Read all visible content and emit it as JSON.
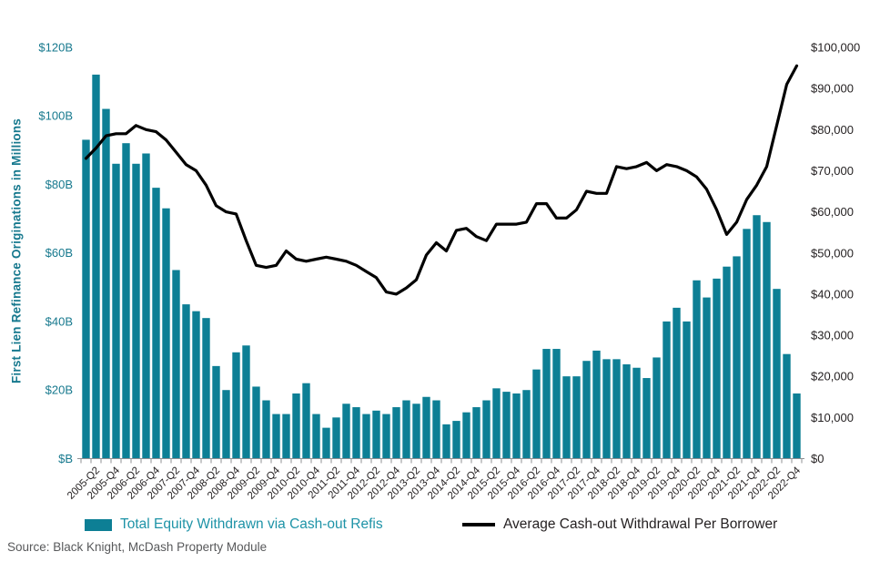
{
  "source_note": "Source: Black Knight, McDash Property Module",
  "left_axis": {
    "title": "First Lien Refinance Originations in Millions",
    "tick_labels": [
      "$B",
      "$20B",
      "$40B",
      "$60B",
      "$80B",
      "$100B",
      "$120B"
    ],
    "tick_values_billions": [
      0,
      20,
      40,
      60,
      80,
      100,
      120
    ],
    "max_billions": 120,
    "color": "#17798e"
  },
  "right_axis": {
    "tick_labels": [
      "$0",
      "$10,000",
      "$20,000",
      "$30,000",
      "$40,000",
      "$50,000",
      "$60,000",
      "$70,000",
      "$80,000",
      "$90,000",
      "$100,000"
    ],
    "tick_values_dollars": [
      0,
      10000,
      20000,
      30000,
      40000,
      50000,
      60000,
      70000,
      80000,
      90000,
      100000
    ],
    "max_dollars": 100000,
    "color": "#231f20"
  },
  "legend": [
    {
      "label": "Total Equity Withdrawn via Cash-out Refis",
      "type": "bar",
      "color": "#0d7f95"
    },
    {
      "label": "Average Cash-out Withdrawal Per Borrower",
      "type": "line",
      "color": "#000000"
    }
  ],
  "chart_data": {
    "type": "combo-bar-line",
    "categories": [
      "2005-Q1",
      "2005-Q2",
      "2005-Q3",
      "2005-Q4",
      "2006-Q1",
      "2006-Q2",
      "2006-Q3",
      "2006-Q4",
      "2007-Q1",
      "2007-Q2",
      "2007-Q3",
      "2007-Q4",
      "2008-Q1",
      "2008-Q2",
      "2008-Q3",
      "2008-Q4",
      "2009-Q1",
      "2009-Q2",
      "2009-Q3",
      "2009-Q4",
      "2010-Q1",
      "2010-Q2",
      "2010-Q3",
      "2010-Q4",
      "2011-Q1",
      "2011-Q2",
      "2011-Q3",
      "2011-Q4",
      "2012-Q1",
      "2012-Q2",
      "2012-Q3",
      "2012-Q4",
      "2013-Q1",
      "2013-Q2",
      "2013-Q3",
      "2013-Q4",
      "2014-Q1",
      "2014-Q2",
      "2014-Q3",
      "2014-Q4",
      "2015-Q1",
      "2015-Q2",
      "2015-Q3",
      "2015-Q4",
      "2016-Q1",
      "2016-Q2",
      "2016-Q3",
      "2016-Q4",
      "2017-Q1",
      "2017-Q2",
      "2017-Q3",
      "2017-Q4",
      "2018-Q1",
      "2018-Q2",
      "2018-Q3",
      "2018-Q4",
      "2019-Q1",
      "2019-Q2",
      "2019-Q3",
      "2019-Q4",
      "2020-Q1",
      "2020-Q2",
      "2020-Q3",
      "2020-Q4",
      "2021-Q1",
      "2021-Q2",
      "2021-Q3",
      "2021-Q4",
      "2022-Q1",
      "2022-Q2",
      "2022-Q3",
      "2022-Q4"
    ],
    "x_label_every": 2,
    "x_label_offset": 1,
    "series": [
      {
        "name": "Total Equity Withdrawn via Cash-out Refis",
        "type": "bar",
        "axis": "left",
        "unit": "billions USD",
        "color": "#0d7f95",
        "values": [
          93,
          112,
          102,
          86,
          92,
          86,
          89,
          79,
          73,
          55,
          45,
          43,
          41,
          27,
          20,
          31,
          33,
          21,
          17,
          13,
          13,
          19,
          22,
          13,
          9,
          12,
          16,
          15,
          13,
          14,
          13,
          15,
          17,
          16,
          18,
          17,
          10,
          11,
          13.5,
          15,
          17,
          20.5,
          19.5,
          19,
          20,
          26,
          32,
          32,
          24,
          24,
          28.5,
          31.5,
          29,
          29,
          27.5,
          26.5,
          23.5,
          29.5,
          40,
          44,
          40,
          52,
          47,
          52.5,
          56,
          59,
          67,
          71,
          69,
          49.5,
          30.5,
          19
        ]
      },
      {
        "name": "Average Cash-out Withdrawal Per Borrower",
        "type": "line",
        "axis": "right",
        "unit": "USD",
        "color": "#000000",
        "values": [
          73000,
          75500,
          78500,
          79000,
          79000,
          81000,
          80000,
          79500,
          77500,
          74500,
          71500,
          70000,
          66500,
          61500,
          60000,
          59500,
          53000,
          47000,
          46500,
          47000,
          50500,
          48500,
          48000,
          48500,
          49000,
          48500,
          48000,
          47000,
          45500,
          44000,
          40500,
          40000,
          41500,
          43500,
          49500,
          52500,
          50500,
          55500,
          56000,
          54000,
          53000,
          57000,
          57000,
          57000,
          57500,
          62000,
          62000,
          58500,
          58500,
          60500,
          65000,
          64500,
          64500,
          71000,
          70500,
          71000,
          72000,
          70000,
          71500,
          71000,
          70000,
          68500,
          65500,
          60500,
          54500,
          57500,
          63000,
          66500,
          71000,
          81000,
          91000,
          95500
        ]
      }
    ]
  }
}
